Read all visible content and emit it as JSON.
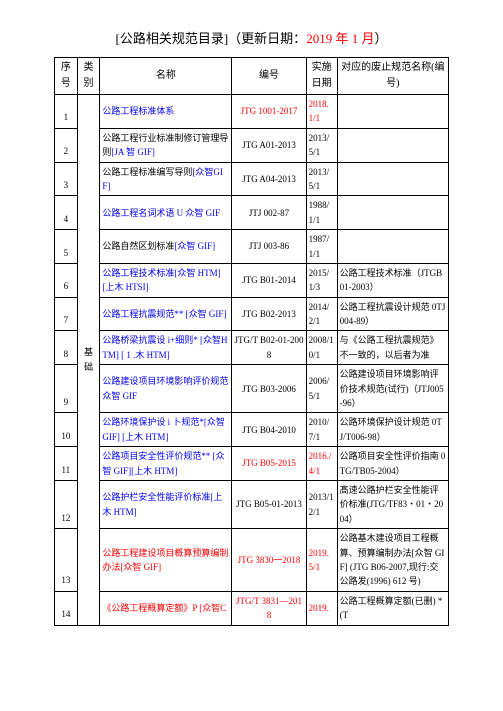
{
  "title": {
    "part1": "[公路相关规范目录]（更新日期：",
    "part2": "2019 年 1 月",
    "part3": "）"
  },
  "headers": {
    "seq": "序号",
    "cat": "类别",
    "name": "名称",
    "code": "编号",
    "date": "实施日期",
    "repl": "对应的废止规范名称(编号)"
  },
  "category": "基础",
  "rows": [
    {
      "seq": "1",
      "name": [
        {
          "t": "公路工程标准体系",
          "c": "blue"
        }
      ],
      "code": "JTG 1001-2017",
      "code_c": "red",
      "date": "2018.1/1",
      "date_c": "red",
      "repl": ""
    },
    {
      "seq": "2",
      "name": [
        {
          "t": "公路工程行业标准制修订管理导则",
          "c": "black"
        },
        {
          "t": "[JA 智 GIF]",
          "c": "blue"
        }
      ],
      "code": "JTG A01-2013",
      "code_c": "black",
      "date": "2013/5/1",
      "repl": ""
    },
    {
      "seq": "3",
      "name": [
        {
          "t": "公路工程标准编写导则",
          "c": "black"
        },
        {
          "t": "[众智GIF]",
          "c": "blue"
        }
      ],
      "code": "JTG A04-2013",
      "code_c": "black",
      "date": "2013/5/1",
      "repl": ""
    },
    {
      "seq": "4",
      "name": [
        {
          "t": "公路工程名词术语 U 众智 GIF",
          "c": "blue"
        }
      ],
      "code": "JTJ 002-87",
      "code_c": "black",
      "date": "1988/1/1",
      "repl": ""
    },
    {
      "seq": "5",
      "name": [
        {
          "t": "公路自然区划标准",
          "c": "black"
        },
        {
          "t": "[众智 GIF]",
          "c": "blue"
        }
      ],
      "code": "JTJ 003-86",
      "code_c": "black",
      "date": "1987/1/1",
      "repl": ""
    },
    {
      "seq": "6",
      "name": [
        {
          "t": "公路工程技术标准[众智 HTM][上木 HTSI]",
          "c": "blue"
        }
      ],
      "code": "JTG B01-2014",
      "code_c": "black",
      "date": "2015/1/3",
      "repl": "公路工程技术标准（JTGB01-2003）"
    },
    {
      "seq": "7",
      "name": [
        {
          "t": "公路工程抗震规范** [众智 GIF]",
          "c": "blue"
        }
      ],
      "code": "JTG B02-2013",
      "code_c": "black",
      "date": "2014/2/1",
      "repl": "公路工程抗震设计规范 0TJ004-89）"
    },
    {
      "seq": "8",
      "name": [
        {
          "t": "公路桥梁抗震设 i+细则* [众智HTM] [ 1 .木 HTM]",
          "c": "blue"
        }
      ],
      "code": "JTG/T B02-01-2008",
      "code_c": "black",
      "date": "2008/10/1",
      "repl": "与《公路工程抗震规范》不一致的，以后者为准"
    },
    {
      "seq": "9",
      "name": [
        {
          "t": "公路建设项目环境影响评价规范众智 GIF",
          "c": "blue"
        }
      ],
      "code": "JTG B03-2006",
      "code_c": "black",
      "date": "2006/5/1",
      "repl": "公路建设项目环境影响评价技术规范(试行)（JTJ005-96）"
    },
    {
      "seq": "10",
      "name": [
        {
          "t": "公路环境保护设 i 卜规范*[众智GIF] [上木 HTM]",
          "c": "blue"
        }
      ],
      "code": "JTG B04-2010",
      "code_c": "black",
      "date": "2010/7/1",
      "repl": "公路环境保护设计规范 0TJ/T006-98）"
    },
    {
      "seq": "11",
      "name": [
        {
          "t": "公路项目安全性评价规范** [众智 GIF][上木 HTM]",
          "c": "blue"
        }
      ],
      "code": "JTG B05-2015",
      "code_c": "red",
      "date": "2016./4/1",
      "date_c": "red",
      "repl": "公路项目安全性评价指南 0TG/TB05-2004）"
    },
    {
      "seq": "12",
      "name": [
        {
          "t": "公路护栏安全性能评价标准[上木 HTM]",
          "c": "blue"
        }
      ],
      "code": "JTG B05-01-2013",
      "code_c": "black",
      "date": "2013/12/1",
      "repl": "髙速公路护栏安全性能评价标准(JTG/TF83・01・2004）"
    },
    {
      "seq": "13",
      "name": [
        {
          "t": "公路工程建设项目槪算预算编制办法[众智 GIF]",
          "c": "red"
        }
      ],
      "code": "JTG 3830一2018",
      "code_c": "red",
      "date": "2019.5/1",
      "date_c": "red",
      "repl": "公路基木建设项目工程概算、预算编制办法[众智 GIF] (JTG B06-2007,现行:交公路发(1996) 612 号)"
    },
    {
      "seq": "14",
      "name": [
        {
          "t": "《公路工程概算定额》P [众智C",
          "c": "red"
        }
      ],
      "code": "JTG/T 3831—2018",
      "code_c": "red",
      "date": "2019.",
      "date_c": "red",
      "repl": "公路工程概算定额(已删) *(T"
    }
  ]
}
